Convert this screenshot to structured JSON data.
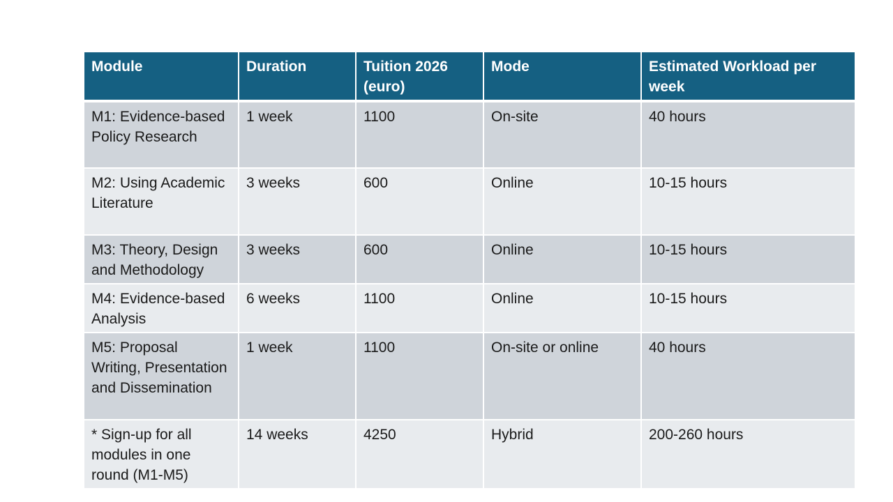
{
  "table": {
    "headers": [
      "Module",
      "Duration",
      "Tuition 2026 (euro)",
      "Mode",
      "Estimated Workload per week"
    ],
    "rows": [
      [
        "M1: Evidence-based Policy Research",
        "1 week",
        "1100",
        "On-site",
        "40 hours"
      ],
      [
        "M2: Using Academic Literature",
        "3 weeks",
        "600",
        "Online",
        "10-15 hours"
      ],
      [
        "M3: Theory, Design and Methodology",
        "3 weeks",
        "600",
        "Online",
        "10-15 hours"
      ],
      [
        "M4: Evidence-based Analysis",
        "6 weeks",
        "1100",
        "Online",
        "10-15 hours"
      ],
      [
        "M5: Proposal Writing, Presentation and Dissemination",
        "1 week",
        "1100",
        "On-site or online",
        "40 hours"
      ],
      [
        "* Sign-up for all modules in one round (M1-M5)",
        "14 weeks",
        "4250",
        "Hybrid",
        "200-260 hours"
      ]
    ]
  },
  "colors": {
    "header_bg": "#156082",
    "header_text": "#ffffff",
    "row_dark": "#cfd4da",
    "row_light": "#e8ebee"
  }
}
